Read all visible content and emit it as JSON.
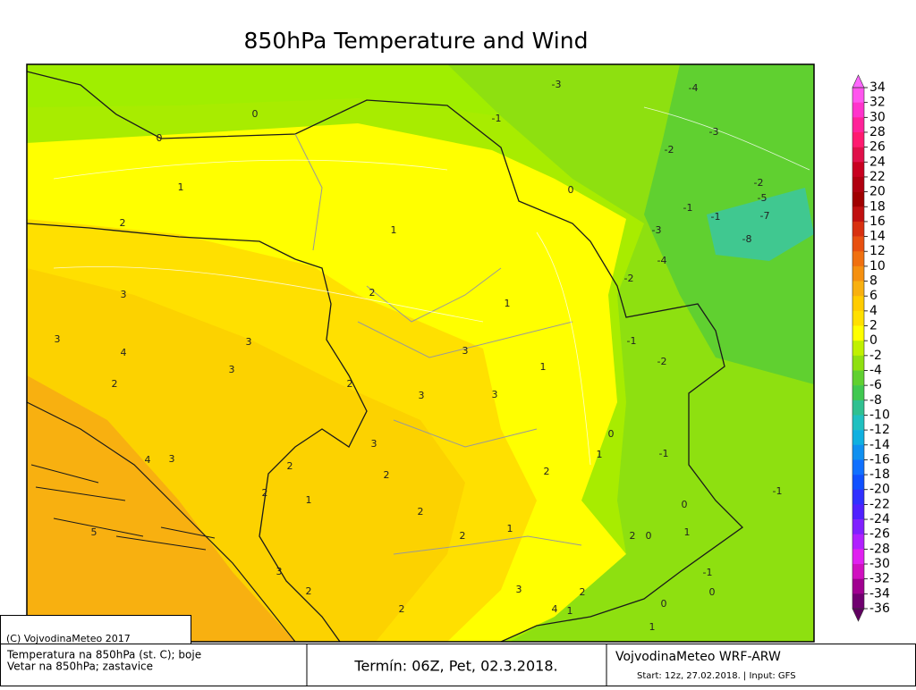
{
  "title": "850hPa Temperature and Wind",
  "colorbar": {
    "labels": [
      34,
      32,
      30,
      28,
      26,
      24,
      22,
      20,
      18,
      16,
      14,
      12,
      10,
      8,
      6,
      4,
      2,
      0,
      -2,
      -4,
      -6,
      -8,
      -10,
      -12,
      -14,
      -16,
      -18,
      -20,
      -22,
      -24,
      -26,
      -28,
      -30,
      -32,
      -34,
      -36
    ],
    "colors": [
      "#ff55ee",
      "#ff33cc",
      "#ff2299",
      "#ff1a70",
      "#e0104a",
      "#c80020",
      "#b00010",
      "#a00000",
      "#c01010",
      "#d83010",
      "#e85010",
      "#f07010",
      "#f59010",
      "#f8b010",
      "#ffcc00",
      "#ffe000",
      "#ffff00",
      "#c0f000",
      "#90e010",
      "#60d030",
      "#40c850",
      "#30c090",
      "#20c0c0",
      "#10b0e0",
      "#1090f0",
      "#1070ff",
      "#1050ff",
      "#3030ff",
      "#5020ff",
      "#8020ff",
      "#b020ff",
      "#e020f0",
      "#d010c0",
      "#a00090",
      "#700070"
    ],
    "over_color": "#ff66ff",
    "under_color": "#600060"
  },
  "map": {
    "contour_labels": [
      0,
      0,
      1,
      2,
      1,
      -3,
      -4,
      -1,
      -3,
      -2,
      0,
      -2,
      -5,
      -7,
      -1,
      -1,
      -3,
      -8,
      -4,
      -2,
      3,
      2,
      1,
      3,
      4,
      3,
      -1,
      -2,
      2,
      3,
      3,
      1,
      3,
      2,
      3,
      0,
      3,
      1,
      -1,
      4,
      3,
      2,
      2,
      1,
      2,
      2,
      -1,
      2,
      0,
      5,
      2,
      1,
      2,
      0,
      1,
      3,
      -1,
      2,
      3,
      2,
      0,
      2,
      4,
      1,
      0,
      1
    ]
  },
  "footer": {
    "copyright": "(C) VojvodinaMeteo 2017",
    "legend_lines": [
      "Temperatura na 850hPa (st. C); boje",
      "Vetar na 850hPa; zastavice"
    ],
    "valid_time": "Termín: 06Z, Pet, 02.3.2018.",
    "model": "VojvodinaMeteo WRF-ARW",
    "run_info": "Start: 12z, 27.02.2018. | Input: GFS"
  }
}
